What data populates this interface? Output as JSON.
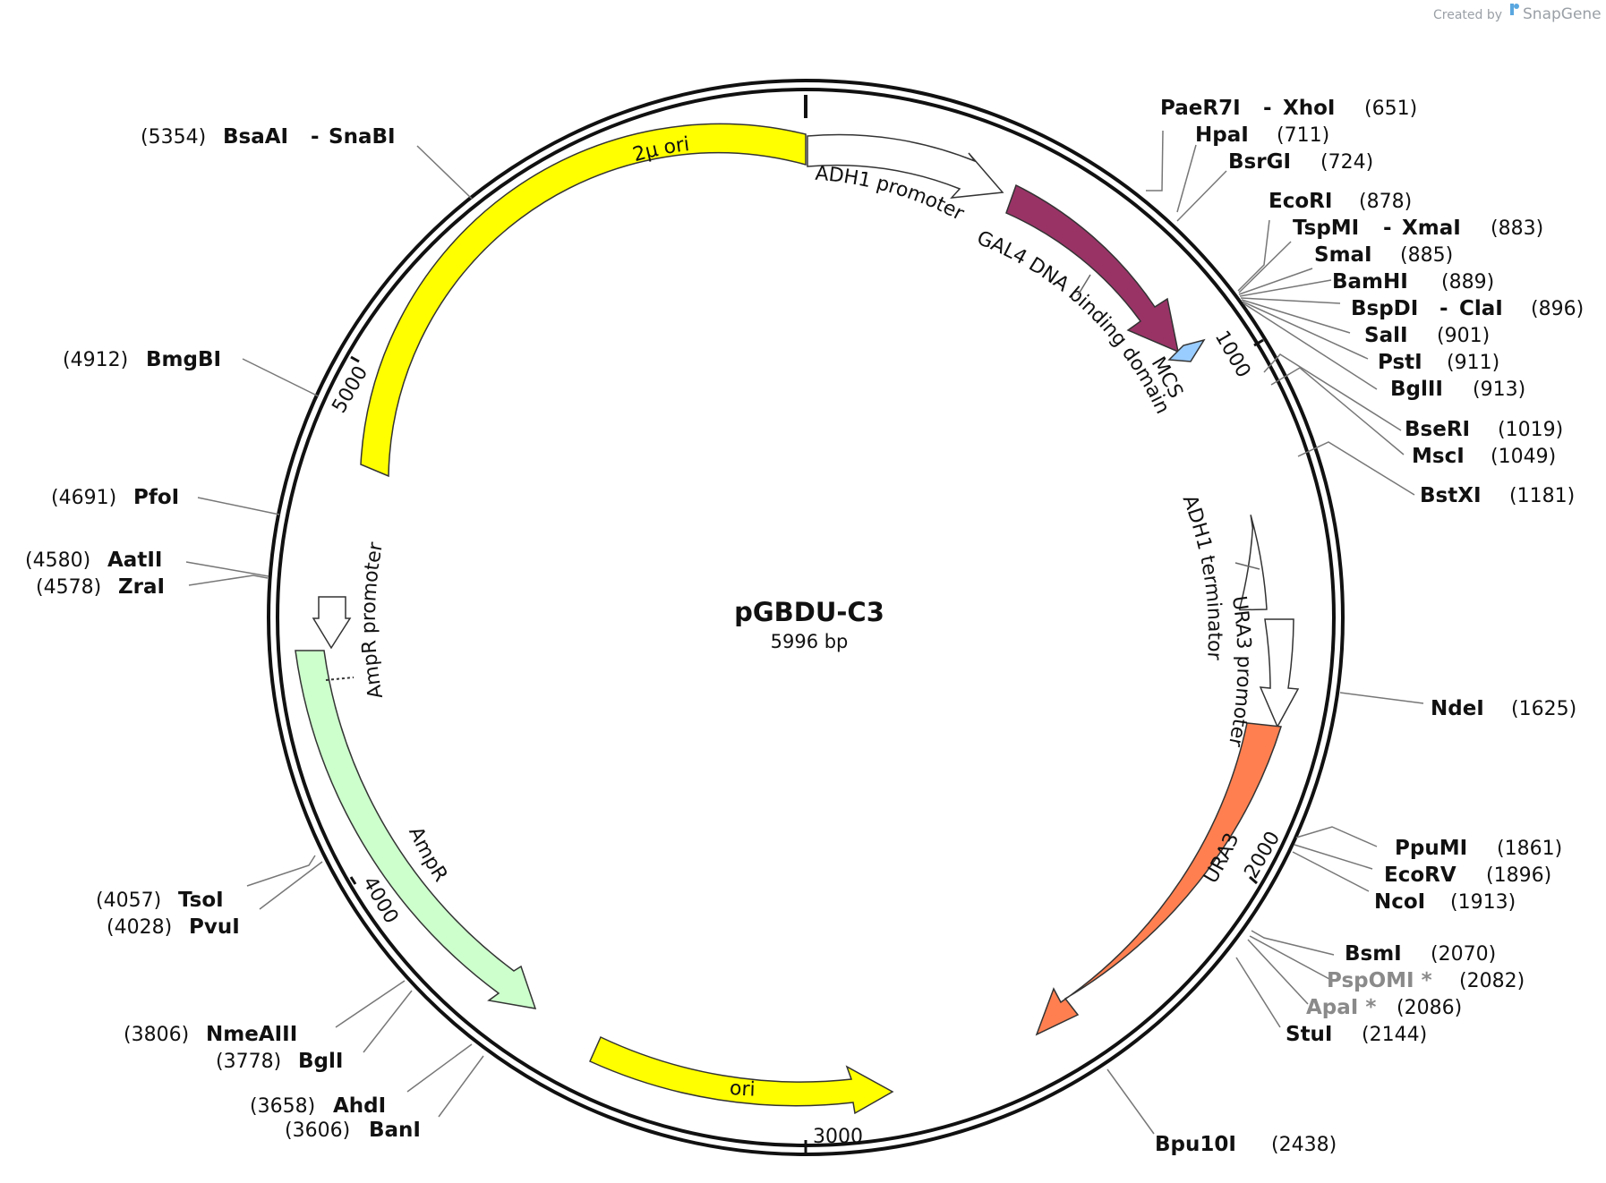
{
  "credit": {
    "prefix": "Created by",
    "brand": "SnapGene"
  },
  "plasmid": {
    "name": "pGBDU-C3",
    "size": "5996 bp"
  },
  "ticks": [
    "1000",
    "2000",
    "3000",
    "4000",
    "5000"
  ],
  "features": [
    {
      "name": "ADH1 promoter",
      "color": "#ffffff"
    },
    {
      "name": "GAL4 DNA binding domain",
      "color": "#993366"
    },
    {
      "name": "MCS",
      "color": "#99ccff"
    },
    {
      "name": "ADH1 terminator",
      "color": "#ffffff"
    },
    {
      "name": "URA3 promoter",
      "color": "#ffffff"
    },
    {
      "name": "URA3",
      "color": "#ff7f50"
    },
    {
      "name": "ori",
      "color": "#ffff00"
    },
    {
      "name": "AmpR",
      "color": "#ccffcc"
    },
    {
      "name": "AmpR promoter",
      "color": "#ffffff"
    },
    {
      "name": "2µ ori",
      "color": "#ffff00"
    }
  ],
  "sites": [
    {
      "name": "PaeR7I",
      "name2": "XhoI",
      "pos": "(651)"
    },
    {
      "name": "HpaI",
      "pos": "(711)"
    },
    {
      "name": "BsrGI",
      "pos": "(724)"
    },
    {
      "name": "EcoRI",
      "pos": "(878)"
    },
    {
      "name": "TspMI",
      "name2": "XmaI",
      "pos": "(883)"
    },
    {
      "name": "SmaI",
      "pos": "(885)"
    },
    {
      "name": "BamHI",
      "pos": "(889)"
    },
    {
      "name": "BspDI",
      "name2": "ClaI",
      "pos": "(896)"
    },
    {
      "name": "SalI",
      "pos": "(901)"
    },
    {
      "name": "PstI",
      "pos": "(911)"
    },
    {
      "name": "BglII",
      "pos": "(913)"
    },
    {
      "name": "BseRI",
      "pos": "(1019)"
    },
    {
      "name": "MscI",
      "pos": "(1049)"
    },
    {
      "name": "BstXI",
      "pos": "(1181)"
    },
    {
      "name": "NdeI",
      "pos": "(1625)"
    },
    {
      "name": "PpuMI",
      "pos": "(1861)"
    },
    {
      "name": "EcoRV",
      "pos": "(1896)"
    },
    {
      "name": "NcoI",
      "pos": "(1913)"
    },
    {
      "name": "BsmI",
      "pos": "(2070)"
    },
    {
      "name": "PspOMI *",
      "pos": "(2082)"
    },
    {
      "name": "ApaI *",
      "pos": "(2086)"
    },
    {
      "name": "StuI",
      "pos": "(2144)"
    },
    {
      "name": "Bpu10I",
      "pos": "(2438)"
    },
    {
      "name": "BanI",
      "pos": "(3606)"
    },
    {
      "name": "AhdI",
      "pos": "(3658)"
    },
    {
      "name": "BglI",
      "pos": "(3778)"
    },
    {
      "name": "NmeAIII",
      "pos": "(3806)"
    },
    {
      "name": "PvuI",
      "pos": "(4028)"
    },
    {
      "name": "TsoI",
      "pos": "(4057)"
    },
    {
      "name": "ZraI",
      "pos": "(4578)"
    },
    {
      "name": "AatII",
      "pos": "(4580)"
    },
    {
      "name": "PfoI",
      "pos": "(4691)"
    },
    {
      "name": "BmgBI",
      "pos": "(4912)"
    },
    {
      "name": "BsaAI",
      "name2": "SnaBI",
      "pos": "(5354)"
    }
  ]
}
